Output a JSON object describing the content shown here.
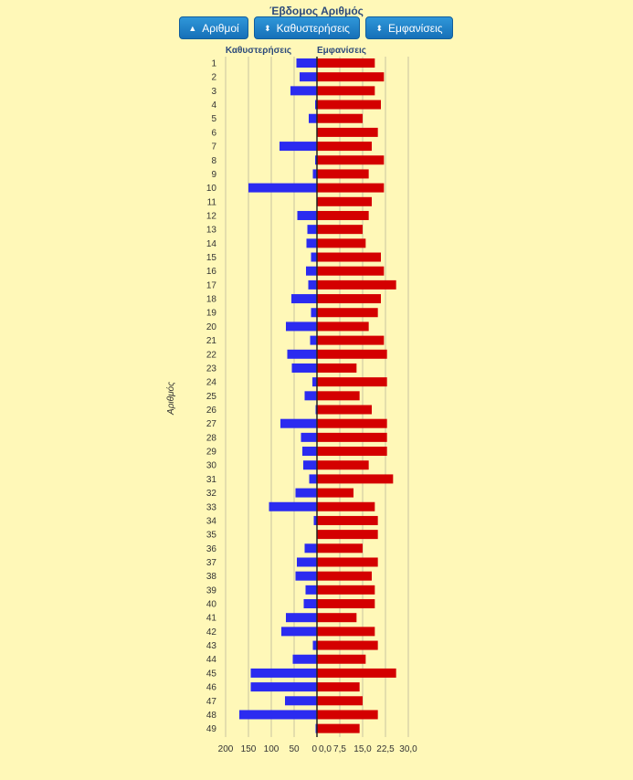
{
  "title": "Έβδομος Αριθμός",
  "buttons": [
    {
      "icon": "sort-up-icon",
      "glyph": "▲",
      "label": "Αριθμοί"
    },
    {
      "icon": "sort-both-icon",
      "glyph": "⬍",
      "label": "Καθυστερήσεις"
    },
    {
      "icon": "sort-both-icon",
      "glyph": "⬍",
      "label": "Εμφανίσεις"
    }
  ],
  "chart_data": {
    "type": "bar",
    "orientation": "horizontal",
    "ylabel": "Αριθμός",
    "categories": [
      "1",
      "2",
      "3",
      "4",
      "5",
      "6",
      "7",
      "8",
      "9",
      "10",
      "11",
      "12",
      "13",
      "14",
      "15",
      "16",
      "17",
      "18",
      "19",
      "20",
      "21",
      "22",
      "23",
      "24",
      "25",
      "26",
      "27",
      "28",
      "29",
      "30",
      "31",
      "32",
      "33",
      "34",
      "35",
      "36",
      "37",
      "38",
      "39",
      "40",
      "41",
      "42",
      "43",
      "44",
      "45",
      "46",
      "47",
      "48",
      "49"
    ],
    "series": [
      {
        "name": "Καθυστερήσεις",
        "color": "#2b2bf0",
        "xlim": [
          200,
          0
        ],
        "ticks": [
          "200",
          "150",
          "100",
          "50",
          "0"
        ],
        "values": [
          45,
          38,
          58,
          4,
          18,
          0,
          82,
          4,
          9,
          150,
          0,
          43,
          21,
          23,
          13,
          24,
          19,
          56,
          13,
          68,
          15,
          65,
          55,
          10,
          27,
          3,
          80,
          35,
          32,
          30,
          17,
          47,
          105,
          7,
          0,
          27,
          44,
          47,
          25,
          29,
          68,
          78,
          9,
          53,
          145,
          145,
          70,
          170,
          3
        ]
      },
      {
        "name": "Εμφανίσεις",
        "color": "#d40000",
        "xlim": [
          0,
          30
        ],
        "ticks": [
          "0,0",
          "7,5",
          "15,0",
          "22,5",
          "30,0"
        ],
        "values": [
          19,
          22,
          19,
          21,
          15,
          20,
          18,
          22,
          17,
          22,
          18,
          17,
          15,
          16,
          21,
          22,
          26,
          21,
          20,
          17,
          22,
          23,
          13,
          23,
          14,
          18,
          23,
          23,
          23,
          17,
          25,
          12,
          19,
          20,
          20,
          15,
          20,
          18,
          19,
          19,
          13,
          19,
          20,
          16,
          26,
          14,
          15,
          20,
          14
        ]
      }
    ],
    "grid": true
  }
}
